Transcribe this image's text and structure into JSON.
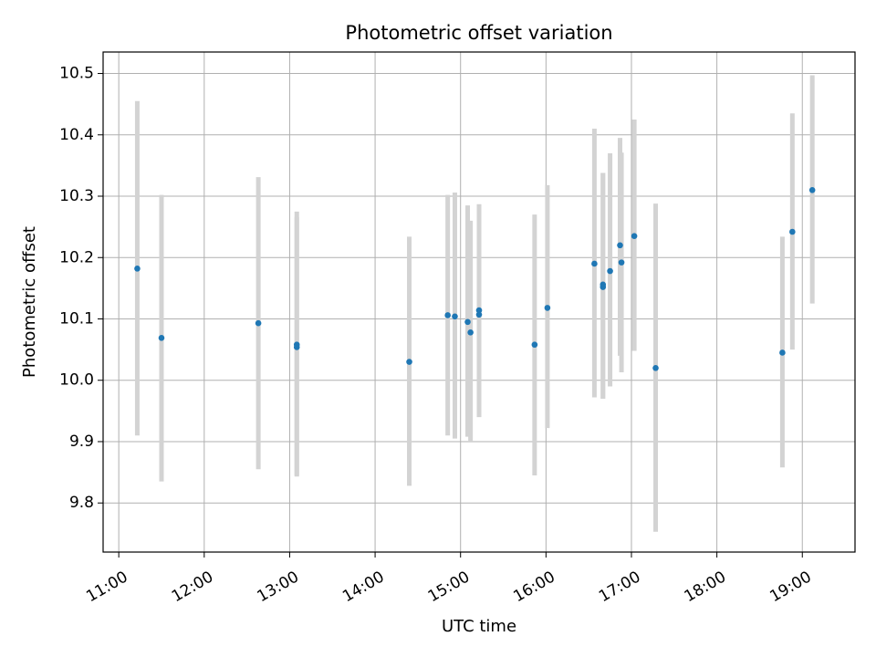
{
  "chart_data": {
    "type": "scatter",
    "title": "Photometric offset variation",
    "xlabel": "UTC time",
    "ylabel": "Photometric offset",
    "x_tick_labels": [
      "11:00",
      "12:00",
      "13:00",
      "14:00",
      "15:00",
      "16:00",
      "17:00",
      "18:00",
      "19:00"
    ],
    "y_tick_labels": [
      "9.8",
      "9.9",
      "10.0",
      "10.1",
      "10.2",
      "10.3",
      "10.4",
      "10.5"
    ],
    "y_ticks": [
      9.8,
      9.9,
      10.0,
      10.1,
      10.2,
      10.3,
      10.4,
      10.5
    ],
    "xlim": [
      "10:49",
      "19:37"
    ],
    "ylim": [
      9.72,
      10.535
    ],
    "grid": true,
    "point_color": "#1f77b4",
    "errorbar_color": "#d3d3d3",
    "points": [
      {
        "time": "11:13",
        "y": 10.182,
        "low": 9.91,
        "high": 10.455
      },
      {
        "time": "11:30",
        "y": 10.069,
        "low": 9.835,
        "high": 10.302
      },
      {
        "time": "12:38",
        "y": 10.093,
        "low": 9.855,
        "high": 10.331
      },
      {
        "time": "13:05",
        "y": 10.054,
        "low": 9.843,
        "high": 10.275
      },
      {
        "time": "13:05",
        "y": 10.058,
        "low": 9.845,
        "high": 10.266
      },
      {
        "time": "14:24",
        "y": 10.03,
        "low": 9.828,
        "high": 10.234
      },
      {
        "time": "14:51",
        "y": 10.106,
        "low": 9.91,
        "high": 10.302
      },
      {
        "time": "14:56",
        "y": 10.104,
        "low": 9.905,
        "high": 10.306
      },
      {
        "time": "15:05",
        "y": 10.095,
        "low": 9.908,
        "high": 10.285
      },
      {
        "time": "15:07",
        "y": 10.078,
        "low": 9.9,
        "high": 10.26
      },
      {
        "time": "15:13",
        "y": 10.107,
        "low": 9.94,
        "high": 10.286
      },
      {
        "time": "15:13",
        "y": 10.114,
        "low": 9.945,
        "high": 10.287
      },
      {
        "time": "15:52",
        "y": 10.058,
        "low": 9.845,
        "high": 10.27
      },
      {
        "time": "16:01",
        "y": 10.118,
        "low": 9.922,
        "high": 10.318
      },
      {
        "time": "16:34",
        "y": 10.19,
        "low": 9.972,
        "high": 10.41
      },
      {
        "time": "16:40",
        "y": 10.152,
        "low": 9.97,
        "high": 10.338
      },
      {
        "time": "16:40",
        "y": 10.156,
        "low": 9.97,
        "high": 10.338
      },
      {
        "time": "16:45",
        "y": 10.178,
        "low": 9.99,
        "high": 10.37
      },
      {
        "time": "16:52",
        "y": 10.22,
        "low": 10.04,
        "high": 10.395
      },
      {
        "time": "16:53",
        "y": 10.192,
        "low": 10.013,
        "high": 10.371
      },
      {
        "time": "17:02",
        "y": 10.235,
        "low": 10.048,
        "high": 10.425
      },
      {
        "time": "17:17",
        "y": 10.02,
        "low": 9.753,
        "high": 10.288
      },
      {
        "time": "18:46",
        "y": 10.045,
        "low": 9.858,
        "high": 10.234
      },
      {
        "time": "18:53",
        "y": 10.242,
        "low": 10.05,
        "high": 10.435
      },
      {
        "time": "19:07",
        "y": 10.31,
        "low": 10.125,
        "high": 10.497
      }
    ]
  }
}
